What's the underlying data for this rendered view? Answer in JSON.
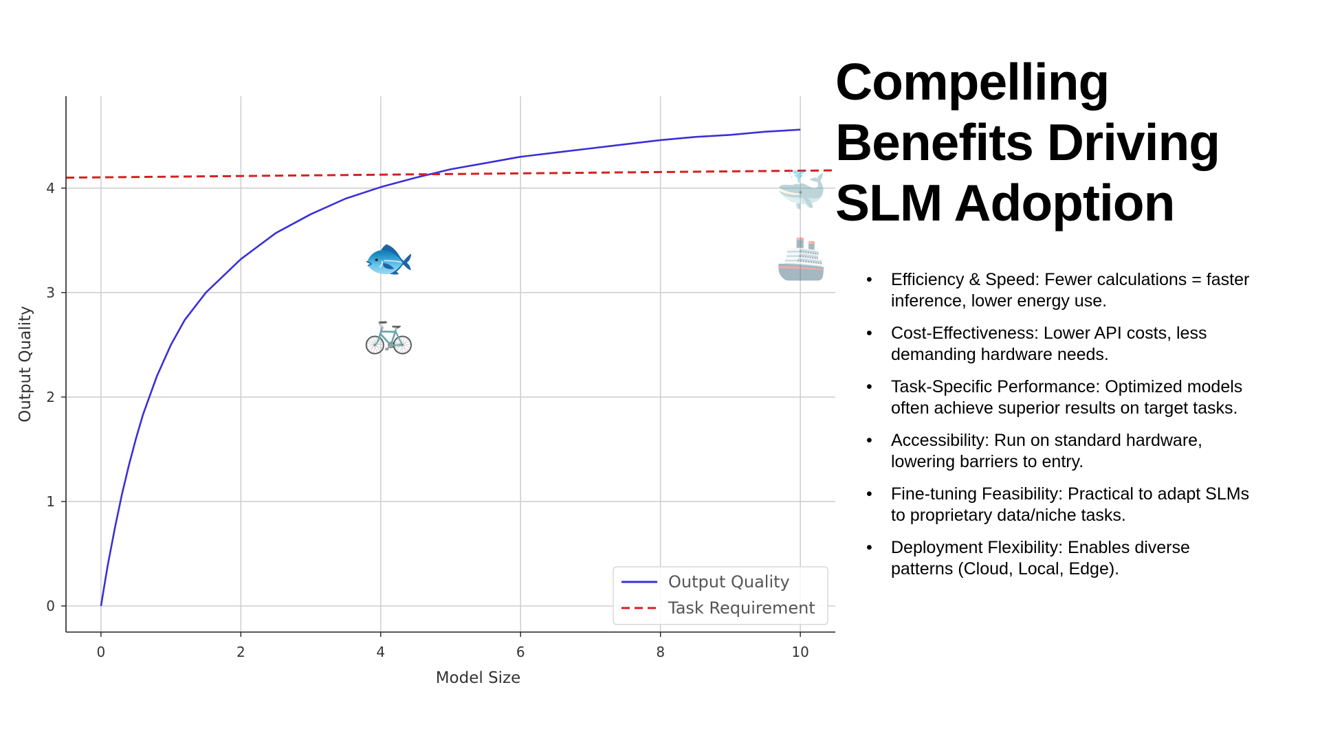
{
  "title": "Compelling Benefits Driving SLM Adoption",
  "bullets": [
    "Efficiency & Speed: Fewer calculations = faster inference, lower energy use.",
    "Cost-Effectiveness: Lower API costs, less demanding hardware needs.",
    "Task-Specific Performance: Optimized models often achieve superior results on target tasks.",
    "Accessibility: Run on standard hardware, lowering barriers to entry.",
    "Fine-tuning Feasibility: Practical to adapt SLMs to proprietary data/niche tasks.",
    "Deployment Flexibility: Enables diverse patterns (Cloud, Local, Edge)."
  ],
  "chart_data": {
    "type": "line",
    "xlabel": "Model Size",
    "ylabel": "Output Quality",
    "xlim": [
      -0.5,
      10.5
    ],
    "ylim": [
      -0.25,
      4.88
    ],
    "xticks": [
      0,
      2,
      4,
      6,
      8,
      10
    ],
    "yticks": [
      0,
      1,
      2,
      3,
      4
    ],
    "grid": true,
    "legend_position": "bottom-right",
    "series": [
      {
        "name": "Output Quality",
        "color": "#3a2fd6",
        "style": "solid",
        "x": [
          0,
          0.05,
          0.1,
          0.2,
          0.3,
          0.4,
          0.5,
          0.6,
          0.8,
          1.0,
          1.2,
          1.5,
          2.0,
          2.5,
          3.0,
          3.5,
          4.0,
          4.5,
          5.0,
          5.5,
          6.0,
          6.5,
          7.0,
          7.5,
          8.0,
          8.5,
          9.0,
          9.5,
          10.0
        ],
        "y": [
          0,
          0.2,
          0.4,
          0.75,
          1.07,
          1.35,
          1.6,
          1.83,
          2.2,
          2.5,
          2.74,
          3.0,
          3.32,
          3.57,
          3.75,
          3.9,
          4.01,
          4.1,
          4.18,
          4.24,
          4.3,
          4.34,
          4.38,
          4.42,
          4.46,
          4.49,
          4.51,
          4.54,
          4.56
        ]
      },
      {
        "name": "Task Requirement",
        "color": "#d42020",
        "style": "dashed",
        "x": [
          -0.5,
          10.5
        ],
        "y": [
          4.1,
          4.17
        ]
      }
    ],
    "annotations": [
      {
        "icon": "fish-icon",
        "glyph": "🐟",
        "x": 4.1,
        "y": 3.3
      },
      {
        "icon": "bicycle-icon",
        "glyph": "🚲",
        "x": 4.1,
        "y": 2.6
      },
      {
        "icon": "whale-icon",
        "glyph": "🐳",
        "x": 10.0,
        "y": 3.95,
        "faded": true
      },
      {
        "icon": "ship-icon",
        "glyph": "🚢",
        "x": 10.0,
        "y": 3.3,
        "faded": true
      }
    ]
  }
}
